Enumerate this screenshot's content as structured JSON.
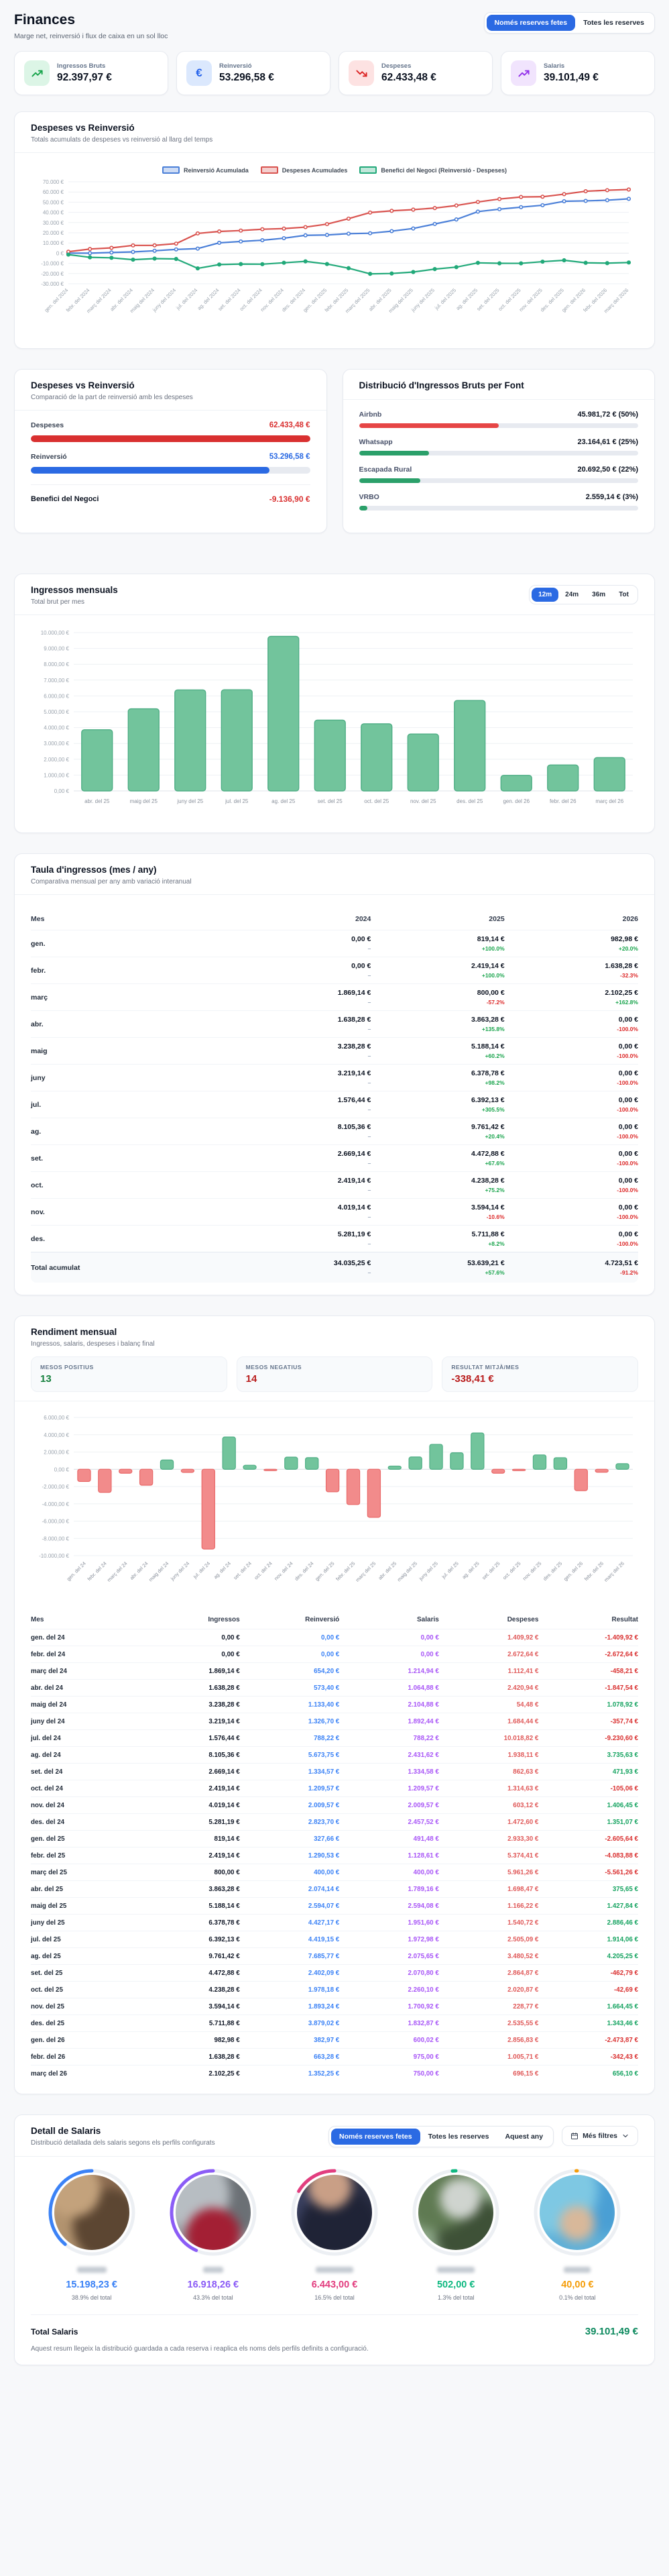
{
  "header": {
    "title": "Finances",
    "subtitle": "Marge net, reinversió i flux de caixa en un sol lloc",
    "toggle": {
      "active": "Només reserves fetes",
      "inactive": "Totes les reserves"
    }
  },
  "stats": [
    {
      "label": "Ingressos Bruts",
      "value": "92.397,97 €",
      "icon": "trending-up-icon",
      "accent": "#16a34a",
      "bg": "#dcf5e6"
    },
    {
      "label": "Reinversió",
      "value": "53.296,58 €",
      "icon": "euro-icon",
      "accent": "#2563eb",
      "bg": "#dbe8fd"
    },
    {
      "label": "Despeses",
      "value": "62.433,48 €",
      "icon": "trending-down-icon",
      "accent": "#dc2626",
      "bg": "#fde2e2"
    },
    {
      "label": "Salaris",
      "value": "39.101,49 €",
      "icon": "trending-up-icon",
      "accent": "#9333ea",
      "bg": "#f1e4fd"
    }
  ],
  "cumulative_section": {
    "title": "Despeses vs Reinversió",
    "subtitle": "Totals acumulats de despeses vs reinversió al llarg del temps"
  },
  "comparison_section": {
    "title": "Despeses vs Reinversió",
    "subtitle": "Comparació de la part de reinversió amb les despeses",
    "rows": [
      {
        "label": "Despeses",
        "value": "62.433,48 €",
        "color": "#d93030",
        "pct": 100
      },
      {
        "label": "Reinversió",
        "value": "53.296,58 €",
        "color": "#2b6ae3",
        "pct": 85.4
      }
    ],
    "benefit_label": "Benefici del Negoci",
    "benefit_value": "-9.136,90 €",
    "benefit_color": "#d93030"
  },
  "distribution_section": {
    "title": "Distribució d'Ingressos Bruts per Font",
    "items": [
      {
        "label": "Airbnb",
        "value": "45.981,72 € (50%)",
        "pct": 50,
        "color": "#e64545"
      },
      {
        "label": "Whatsapp",
        "value": "23.164,61 € (25%)",
        "pct": 25,
        "color": "#2ba06a"
      },
      {
        "label": "Escapada Rural",
        "value": "20.692,50 € (22%)",
        "pct": 22,
        "color": "#2ba06a"
      },
      {
        "label": "VRBO",
        "value": "2.559,14 € (3%)",
        "pct": 3,
        "color": "#2ba06a"
      }
    ]
  },
  "monthly_section": {
    "title": "Ingressos mensuals",
    "subtitle": "Total brut per mes",
    "ranges": [
      "12m",
      "24m",
      "36m",
      "Tot"
    ],
    "active_range": "12m"
  },
  "income_table": {
    "title": "Taula d'ingressos (mes / any)",
    "subtitle": "Comparativa mensual per any amb variació interanual",
    "columns": [
      "Mes",
      "2024",
      "2025",
      "2026"
    ],
    "rows": [
      [
        "gen.",
        "0,00 €",
        "–",
        "819,14 €",
        "+100.0%",
        "982,98 €",
        "+20.0%"
      ],
      [
        "febr.",
        "0,00 €",
        "–",
        "2.419,14 €",
        "+100.0%",
        "1.638,28 €",
        "-32.3%"
      ],
      [
        "març",
        "1.869,14 €",
        "–",
        "800,00 €",
        "-57.2%",
        "2.102,25 €",
        "+162.8%"
      ],
      [
        "abr.",
        "1.638,28 €",
        "–",
        "3.863,28 €",
        "+135.8%",
        "0,00 €",
        "-100.0%"
      ],
      [
        "maig",
        "3.238,28 €",
        "–",
        "5.188,14 €",
        "+60.2%",
        "0,00 €",
        "-100.0%"
      ],
      [
        "juny",
        "3.219,14 €",
        "–",
        "6.378,78 €",
        "+98.2%",
        "0,00 €",
        "-100.0%"
      ],
      [
        "jul.",
        "1.576,44 €",
        "–",
        "6.392,13 €",
        "+305.5%",
        "0,00 €",
        "-100.0%"
      ],
      [
        "ag.",
        "8.105,36 €",
        "–",
        "9.761,42 €",
        "+20.4%",
        "0,00 €",
        "-100.0%"
      ],
      [
        "set.",
        "2.669,14 €",
        "–",
        "4.472,88 €",
        "+67.6%",
        "0,00 €",
        "-100.0%"
      ],
      [
        "oct.",
        "2.419,14 €",
        "–",
        "4.238,28 €",
        "+75.2%",
        "0,00 €",
        "-100.0%"
      ],
      [
        "nov.",
        "4.019,14 €",
        "–",
        "3.594,14 €",
        "-10.6%",
        "0,00 €",
        "-100.0%"
      ],
      [
        "des.",
        "5.281,19 €",
        "–",
        "5.711,88 €",
        "+8.2%",
        "0,00 €",
        "-100.0%"
      ]
    ],
    "total_row": [
      "Total acumulat",
      "34.035,25 €",
      "–",
      "53.639,21 €",
      "+57.6%",
      "4.723,51 €",
      "-91.2%"
    ]
  },
  "performance_section": {
    "title": "Rendiment mensual",
    "subtitle": "Ingressos, salaris, despeses i balanç final",
    "stats": [
      {
        "label": "MESOS POSITIUS",
        "value": "13",
        "color": "#15803d"
      },
      {
        "label": "MESOS NEGATIUS",
        "value": "14",
        "color": "#b91c1c"
      },
      {
        "label": "RESULTAT MITJÀ/MES",
        "value": "-338,41 €",
        "color": "#b91c1c"
      }
    ],
    "table": {
      "columns": [
        "Mes",
        "Ingressos",
        "Reinversió",
        "Salaris",
        "Despeses",
        "Resultat"
      ],
      "column_colors": [
        "#1f2937",
        "#111827",
        "#3b82f6",
        "#a855f7",
        "#e05b5b",
        "sign"
      ],
      "rows": [
        [
          "gen. del 24",
          "0,00 €",
          "0,00 €",
          "0,00 €",
          "1.409,92 €",
          "-1.409,92 €"
        ],
        [
          "febr. del 24",
          "0,00 €",
          "0,00 €",
          "0,00 €",
          "2.672,64 €",
          "-2.672,64 €"
        ],
        [
          "març del 24",
          "1.869,14 €",
          "654,20 €",
          "1.214,94 €",
          "1.112,41 €",
          "-458,21 €"
        ],
        [
          "abr. del 24",
          "1.638,28 €",
          "573,40 €",
          "1.064,88 €",
          "2.420,94 €",
          "-1.847,54 €"
        ],
        [
          "maig del 24",
          "3.238,28 €",
          "1.133,40 €",
          "2.104,88 €",
          "54,48 €",
          "1.078,92 €"
        ],
        [
          "juny del 24",
          "3.219,14 €",
          "1.326,70 €",
          "1.892,44 €",
          "1.684,44 €",
          "-357,74 €"
        ],
        [
          "jul. del 24",
          "1.576,44 €",
          "788,22 €",
          "788,22 €",
          "10.018,82 €",
          "-9.230,60 €"
        ],
        [
          "ag. del 24",
          "8.105,36 €",
          "5.673,75 €",
          "2.431,62 €",
          "1.938,11 €",
          "3.735,63 €"
        ],
        [
          "set. del 24",
          "2.669,14 €",
          "1.334,57 €",
          "1.334,58 €",
          "862,63 €",
          "471,93 €"
        ],
        [
          "oct. del 24",
          "2.419,14 €",
          "1.209,57 €",
          "1.209,57 €",
          "1.314,63 €",
          "-105,06 €"
        ],
        [
          "nov. del 24",
          "4.019,14 €",
          "2.009,57 €",
          "2.009,57 €",
          "603,12 €",
          "1.406,45 €"
        ],
        [
          "des. del 24",
          "5.281,19 €",
          "2.823,70 €",
          "2.457,52 €",
          "1.472,60 €",
          "1.351,07 €"
        ],
        [
          "gen. del 25",
          "819,14 €",
          "327,66 €",
          "491,48 €",
          "2.933,30 €",
          "-2.605,64 €"
        ],
        [
          "febr. del 25",
          "2.419,14 €",
          "1.290,53 €",
          "1.128,61 €",
          "5.374,41 €",
          "-4.083,88 €"
        ],
        [
          "març del 25",
          "800,00 €",
          "400,00 €",
          "400,00 €",
          "5.961,26 €",
          "-5.561,26 €"
        ],
        [
          "abr. del 25",
          "3.863,28 €",
          "2.074,14 €",
          "1.789,16 €",
          "1.698,47 €",
          "375,65 €"
        ],
        [
          "maig del 25",
          "5.188,14 €",
          "2.594,07 €",
          "2.594,08 €",
          "1.166,22 €",
          "1.427,84 €"
        ],
        [
          "juny del 25",
          "6.378,78 €",
          "4.427,17 €",
          "1.951,60 €",
          "1.540,72 €",
          "2.886,46 €"
        ],
        [
          "jul. del 25",
          "6.392,13 €",
          "4.419,15 €",
          "1.972,98 €",
          "2.505,09 €",
          "1.914,06 €"
        ],
        [
          "ag. del 25",
          "9.761,42 €",
          "7.685,77 €",
          "2.075,65 €",
          "3.480,52 €",
          "4.205,25 €"
        ],
        [
          "set. del 25",
          "4.472,88 €",
          "2.402,09 €",
          "2.070,80 €",
          "2.864,87 €",
          "-462,79 €"
        ],
        [
          "oct. del 25",
          "4.238,28 €",
          "1.978,18 €",
          "2.260,10 €",
          "2.020,87 €",
          "-42,69 €"
        ],
        [
          "nov. del 25",
          "3.594,14 €",
          "1.893,24 €",
          "1.700,92 €",
          "228,77 €",
          "1.664,45 €"
        ],
        [
          "des. del 25",
          "5.711,88 €",
          "3.879,02 €",
          "1.832,87 €",
          "2.535,55 €",
          "1.343,46 €"
        ],
        [
          "gen. del 26",
          "982,98 €",
          "382,97 €",
          "600,02 €",
          "2.856,83 €",
          "-2.473,87 €"
        ],
        [
          "febr. del 26",
          "1.638,28 €",
          "663,28 €",
          "975,00 €",
          "1.005,71 €",
          "-342,43 €"
        ],
        [
          "març del 26",
          "2.102,25 €",
          "1.352,25 €",
          "750,00 €",
          "696,15 €",
          "656,10 €"
        ]
      ]
    }
  },
  "salaries_section": {
    "title": "Detall de Salaris",
    "subtitle": "Distribució detallada dels salaris segons els perfils configurats",
    "filters": [
      "Només reserves fetes",
      "Totes les reserves",
      "Aquest any"
    ],
    "active_filter": "Només reserves fetes",
    "more_filters_label": "Més filtres",
    "profiles": [
      {
        "amount": "15.198,23 €",
        "pct_label": "38.9% del total",
        "pct": 38.9,
        "color": "#3b82f6",
        "name_width": 44
      },
      {
        "amount": "16.918,26 €",
        "pct_label": "43.3% del total",
        "pct": 43.3,
        "color": "#8b5cf6",
        "name_width": 30
      },
      {
        "amount": "6.443,00 €",
        "pct_label": "16.5% del total",
        "pct": 16.5,
        "color": "#e23e7f",
        "name_width": 56
      },
      {
        "amount": "502,00 €",
        "pct_label": "1.3% del total",
        "pct": 1.3,
        "color": "#10b981",
        "name_width": 56
      },
      {
        "amount": "40,00 €",
        "pct_label": "0.1% del total",
        "pct": 0.1,
        "color": "#f59e0b",
        "name_width": 40
      }
    ],
    "total_label": "Total Salaris",
    "total_value": "39.101,49 €",
    "footnote": "Aquest resum llegeix la distribució guardada a cada reserva i reaplica els noms dels perfils definits a configuració."
  },
  "chart_data": [
    {
      "type": "line",
      "title": "Despeses vs Reinversió (acumulat)",
      "x": [
        "gen. del 2024",
        "febr. del 2024",
        "març del 2024",
        "abr. del 2024",
        "maig del 2024",
        "juny del 2024",
        "jul. del 2024",
        "ag. del 2024",
        "set. del 2024",
        "oct. del 2024",
        "nov. del 2024",
        "des. del 2024",
        "gen. del 2025",
        "febr. del 2025",
        "març del 2025",
        "abr. del 2025",
        "maig del 2025",
        "juny del 2025",
        "jul. del 2025",
        "ag. del 2025",
        "set. del 2025",
        "oct. del 2025",
        "nov. del 2025",
        "des. del 2025",
        "gen. del 2026",
        "febr. del 2026",
        "març del 2026"
      ],
      "series": [
        {
          "name": "Reinversió Acumulada",
          "color": "#4a7fd8",
          "values": [
            0,
            0,
            654.2,
            1227.6,
            2361.0,
            3687.7,
            4475.92,
            10149.67,
            11484.24,
            12693.81,
            14703.38,
            17527.08,
            17854.74,
            19145.27,
            19545.27,
            21619.41,
            24213.48,
            28640.65,
            33059.8,
            40745.57,
            43147.66,
            45125.84,
            47019.08,
            50898.1,
            51281.07,
            51944.35,
            53296.58
          ]
        },
        {
          "name": "Despeses Acumulades",
          "color": "#d9534f",
          "values": [
            1409.92,
            4082.56,
            5194.97,
            7615.91,
            7670.39,
            9354.83,
            19373.65,
            21311.76,
            22174.39,
            23489.02,
            24092.14,
            25564.74,
            28498.04,
            33872.45,
            39833.71,
            41532.18,
            42698.4,
            44239.12,
            46744.21,
            50224.73,
            53089.6,
            55110.47,
            55339.24,
            57874.79,
            60731.62,
            61737.33,
            62433.48
          ]
        },
        {
          "name": "Benefici del Negoci (Reinversió - Despeses)",
          "color": "#21a979",
          "values": [
            -1409.92,
            -4082.56,
            -4540.77,
            -6388.31,
            -5309.39,
            -5667.13,
            -14897.73,
            -11162.09,
            -10690.15,
            -10795.21,
            -9388.76,
            -8037.66,
            -10643.3,
            -14727.18,
            -20288.44,
            -19912.77,
            -18484.92,
            -15598.47,
            -13684.41,
            -9479.16,
            -9941.94,
            -9984.63,
            -8320.16,
            -6976.69,
            -9450.55,
            -9792.98,
            -9136.9
          ]
        }
      ],
      "ylim": [
        -30000,
        70000
      ],
      "ytick_step": 10000,
      "grid": true,
      "legend_position": "top"
    },
    {
      "type": "bar",
      "title": "Ingressos mensuals (12m)",
      "categories": [
        "abr. del 25",
        "maig del 25",
        "juny del 25",
        "jul. del 25",
        "ag. del 25",
        "set. del 25",
        "oct. del 25",
        "nov. del 25",
        "des. del 25",
        "gen. del 26",
        "febr. del 26",
        "març del 26"
      ],
      "values": [
        3863.28,
        5188.14,
        6378.78,
        6392.13,
        9761.42,
        4472.88,
        4238.28,
        3594.14,
        5711.88,
        982.98,
        1638.28,
        2102.25
      ],
      "ylim": [
        0,
        10000
      ],
      "ytick_step": 1000,
      "bar_color": "#72c49c",
      "bar_border": "#4fae85",
      "grid": true
    },
    {
      "type": "bar",
      "title": "Rendiment mensual (resultat)",
      "categories": [
        "gen. del 24",
        "febr. del 24",
        "març del 24",
        "abr. del 24",
        "maig del 24",
        "juny del 24",
        "jul. del 24",
        "ag. del 24",
        "set. del 24",
        "oct. del 24",
        "nov. del 24",
        "des. del 24",
        "gen. del 25",
        "febr. del 25",
        "març del 25",
        "abr. del 25",
        "maig del 25",
        "juny del 25",
        "jul. del 25",
        "ag. del 25",
        "set. del 25",
        "oct. del 25",
        "nov. del 25",
        "des. del 25",
        "gen. del 26",
        "febr. del 26",
        "març del 26"
      ],
      "values": [
        -1409.92,
        -2672.64,
        -458.21,
        -1847.54,
        1078.92,
        -357.74,
        -9230.6,
        3735.63,
        471.93,
        -105.06,
        1406.45,
        1351.07,
        -2605.64,
        -4083.88,
        -5561.26,
        375.65,
        1427.84,
        2886.46,
        1914.06,
        4205.25,
        -462.79,
        -42.69,
        1664.45,
        1343.46,
        -2473.87,
        -342.43,
        656.1
      ],
      "ylim": [
        -10000,
        6000
      ],
      "ytick_step": 2000,
      "positive_color": "#72c49c",
      "negative_color": "#f28b8b",
      "grid": true
    }
  ]
}
